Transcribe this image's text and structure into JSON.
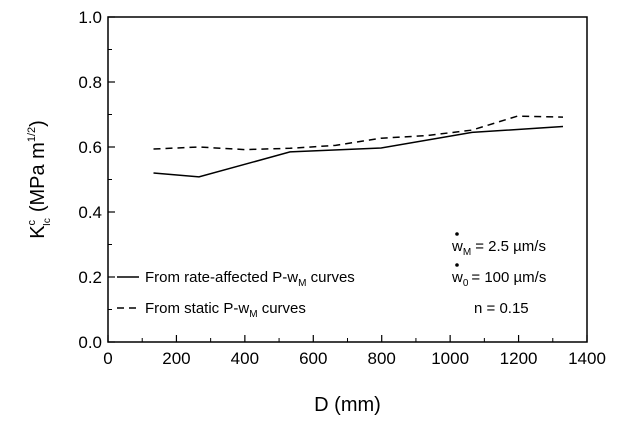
{
  "chart_data": {
    "type": "line",
    "xlabel": "D (mm)",
    "ylabel": {
      "main": "K",
      "superscript": "c",
      "subscript": "Ic",
      "units": "(MPa m",
      "units_sup": "1/2",
      "units_end": ")"
    },
    "xlim": [
      0,
      1400
    ],
    "ylim": [
      0.0,
      1.0
    ],
    "x_ticks": [
      0,
      200,
      400,
      600,
      800,
      1000,
      1200,
      1400
    ],
    "x_tick_labels": [
      "0",
      "200",
      "400",
      "600",
      "800",
      "1000",
      "1200",
      "1400"
    ],
    "y_ticks": [
      0.0,
      0.2,
      0.4,
      0.6,
      0.8,
      1.0
    ],
    "y_tick_labels": [
      "0.0",
      "0.2",
      "0.4",
      "0.6",
      "0.8",
      "1.0"
    ],
    "grid": false,
    "legend_position": "bottom-left",
    "series": [
      {
        "name": "From rate-affected P-wM curves",
        "legend_text": "From rate-affected P-w",
        "legend_sub": "M",
        "legend_end": " curves",
        "style": "solid",
        "color": "#000000",
        "x": [
          133,
          266,
          532,
          798,
          1064,
          1330
        ],
        "y": [
          0.52,
          0.508,
          0.585,
          0.597,
          0.645,
          0.663
        ]
      },
      {
        "name": "From static P-wM curves",
        "legend_text": "From static P-w",
        "legend_sub": "M",
        "legend_end": " curves",
        "style": "dashed",
        "color": "#000000",
        "x": [
          133,
          266,
          400,
          532,
          665,
          798,
          931,
          1064,
          1197,
          1330
        ],
        "y": [
          0.594,
          0.6,
          0.592,
          0.596,
          0.605,
          0.627,
          0.635,
          0.652,
          0.695,
          0.692
        ]
      }
    ],
    "annotations": [
      {
        "var": "w",
        "sub": "M",
        "eq": "=  2.5 µm/s"
      },
      {
        "var": "w",
        "sub": "0",
        "eq": "= 100 µm/s"
      },
      {
        "var": "n",
        "sub": "",
        "eq": " = 0.15"
      }
    ]
  }
}
